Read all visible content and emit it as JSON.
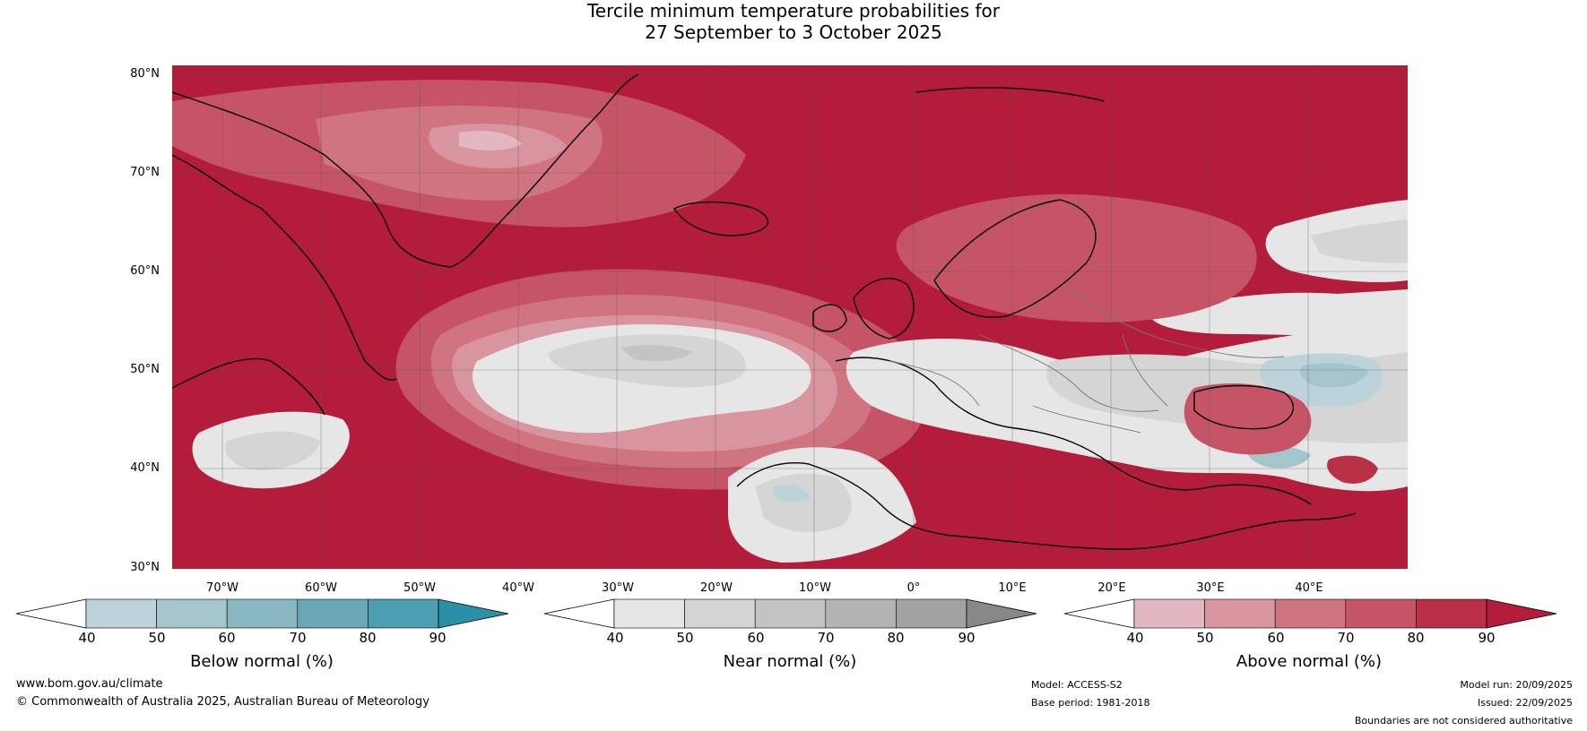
{
  "title": {
    "line1": "Tercile minimum temperature probabilities for",
    "line2": "27 September to 3 October 2025"
  },
  "map": {
    "lat_labels": [
      "80°N",
      "70°N",
      "60°N",
      "50°N",
      "40°N",
      "30°N"
    ],
    "lon_labels": [
      "70°W",
      "60°W",
      "50°W",
      "40°W",
      "30°W",
      "20°W",
      "10°W",
      "0°",
      "10°E",
      "20°E",
      "30°E",
      "40°E"
    ]
  },
  "legend": {
    "below": {
      "title": "Below normal (%)",
      "ticks": [
        "40",
        "50",
        "60",
        "70",
        "80",
        "90"
      ],
      "colors": [
        "#bdd3da",
        "#a5c5cd",
        "#88b6c1",
        "#6aa8b7",
        "#4aa0b2",
        "#2b90a6"
      ]
    },
    "near": {
      "title": "Near normal (%)",
      "ticks": [
        "40",
        "50",
        "60",
        "70",
        "80",
        "90"
      ],
      "colors": [
        "#e6e6e6",
        "#d5d5d5",
        "#c4c4c4",
        "#b4b4b4",
        "#a2a2a2",
        "#888888"
      ]
    },
    "above": {
      "title": "Above normal (%)",
      "ticks": [
        "40",
        "50",
        "60",
        "70",
        "80",
        "90"
      ],
      "colors": [
        "#e3b7bf",
        "#d9959f",
        "#cf7480",
        "#c55566",
        "#ba3147",
        "#b31c3a"
      ]
    }
  },
  "footer": {
    "website": "www.bom.gov.au/climate",
    "copyright": "© Commonwealth of Australia 2025, Australian Bureau of Meteorology",
    "model": "Model: ACCESS-S2",
    "base_period": "Base period: 1981-2018",
    "model_run": "Model run: 20/09/2025",
    "issued": "Issued: 22/09/2025",
    "disclaimer": "Boundaries are not considered authoritative"
  }
}
